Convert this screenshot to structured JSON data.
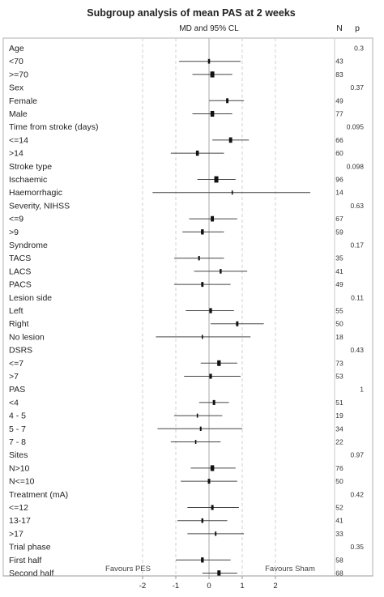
{
  "chart_data": {
    "type": "forest",
    "title": "Subgroup analysis of mean PAS at 2 weeks",
    "subtitle": "MD and 95% CL",
    "col_n_header": "N",
    "col_p_header": "p",
    "xlim": [
      -3,
      3
    ],
    "xticks": [
      "-2",
      "-1",
      "0",
      "1",
      "2"
    ],
    "left_label": "Favours PES",
    "right_label": "Favours Sham",
    "rows": [
      {
        "label": "Age",
        "p": "0.3"
      },
      {
        "label": "<70",
        "md": 0.0,
        "lo": -0.9,
        "hi": 0.95,
        "n": "43"
      },
      {
        "label": ">=70",
        "md": 0.1,
        "lo": -0.5,
        "hi": 0.7,
        "n": "83"
      },
      {
        "label": "Sex",
        "p": "0.37"
      },
      {
        "label": "Female",
        "md": 0.55,
        "lo": 0.0,
        "hi": 1.05,
        "n": "49"
      },
      {
        "label": "Male",
        "md": 0.1,
        "lo": -0.5,
        "hi": 0.7,
        "n": "77"
      },
      {
        "label": "Time from stroke (days)",
        "p": "0.095"
      },
      {
        "label": "<=14",
        "md": 0.65,
        "lo": 0.1,
        "hi": 1.2,
        "n": "66"
      },
      {
        "label": ">14",
        "md": -0.35,
        "lo": -1.15,
        "hi": 0.45,
        "n": "60"
      },
      {
        "label": "Stroke type",
        "p": "0.098"
      },
      {
        "label": "Ischaemic",
        "md": 0.22,
        "lo": -0.35,
        "hi": 0.8,
        "n": "96"
      },
      {
        "label": "Haemorrhagic",
        "md": 0.7,
        "lo": -1.7,
        "hi": 3.05,
        "n": "14"
      },
      {
        "label": "Severity, NIHSS",
        "p": "0.63"
      },
      {
        "label": "<=9",
        "md": 0.1,
        "lo": -0.6,
        "hi": 0.85,
        "n": "67"
      },
      {
        "label": ">9",
        "md": -0.2,
        "lo": -0.8,
        "hi": 0.45,
        "n": "59"
      },
      {
        "label": "Syndrome",
        "p": "0.17"
      },
      {
        "label": "TACS",
        "md": -0.3,
        "lo": -1.05,
        "hi": 0.45,
        "n": "35"
      },
      {
        "label": "LACS",
        "md": 0.35,
        "lo": -0.45,
        "hi": 1.15,
        "n": "41"
      },
      {
        "label": "PACS",
        "md": -0.2,
        "lo": -1.05,
        "hi": 0.65,
        "n": "49"
      },
      {
        "label": "Lesion side",
        "p": "0.11"
      },
      {
        "label": "Left",
        "md": 0.05,
        "lo": -0.7,
        "hi": 0.75,
        "n": "55"
      },
      {
        "label": "Right",
        "md": 0.85,
        "lo": 0.05,
        "hi": 1.65,
        "n": "50"
      },
      {
        "label": "No lesion",
        "md": -0.2,
        "lo": -1.6,
        "hi": 1.25,
        "n": "18"
      },
      {
        "label": "DSRS",
        "p": "0.43"
      },
      {
        "label": "<=7",
        "md": 0.3,
        "lo": -0.25,
        "hi": 0.85,
        "n": "73"
      },
      {
        "label": ">7",
        "md": 0.05,
        "lo": -0.75,
        "hi": 0.95,
        "n": "53"
      },
      {
        "label": "PAS",
        "p": "1"
      },
      {
        "label": "<4",
        "md": 0.15,
        "lo": -0.3,
        "hi": 0.6,
        "n": "51"
      },
      {
        "label": "4 - 5",
        "md": -0.35,
        "lo": -1.05,
        "hi": 0.4,
        "n": "19"
      },
      {
        "label": "5 - 7",
        "md": -0.25,
        "lo": -1.55,
        "hi": 1.0,
        "n": "34"
      },
      {
        "label": "7 - 8",
        "md": -0.4,
        "lo": -1.15,
        "hi": 0.35,
        "n": "22"
      },
      {
        "label": "Sites",
        "p": "0.97"
      },
      {
        "label": "N>10",
        "md": 0.1,
        "lo": -0.55,
        "hi": 0.8,
        "n": "76"
      },
      {
        "label": "N<=10",
        "md": 0.0,
        "lo": -0.85,
        "hi": 0.85,
        "n": "50"
      },
      {
        "label": "Treatment (mA)",
        "p": "0.42"
      },
      {
        "label": "<=12",
        "md": 0.1,
        "lo": -0.65,
        "hi": 0.9,
        "n": "52"
      },
      {
        "label": "13-17",
        "md": -0.2,
        "lo": -0.95,
        "hi": 0.55,
        "n": "41"
      },
      {
        "label": ">17",
        "md": 0.2,
        "lo": -0.65,
        "hi": 1.05,
        "n": "33"
      },
      {
        "label": "Trial phase",
        "p": "0.35"
      },
      {
        "label": "First half",
        "md": -0.2,
        "lo": -1.0,
        "hi": 0.65,
        "n": "58"
      },
      {
        "label": "Second half",
        "md": 0.3,
        "lo": -0.2,
        "hi": 0.85,
        "n": "68"
      }
    ],
    "grid": "dashed vertical",
    "colors": {
      "line": "#444444",
      "axis": "#999999",
      "grid": "#d0d0d0",
      "zero": "#aaaaaa"
    }
  }
}
